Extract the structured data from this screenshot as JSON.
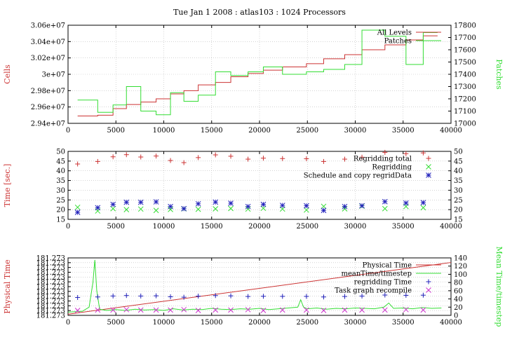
{
  "title": "Tue Jan 1 2008 : atlas103 : 1024 Processors",
  "colors": {
    "red": "#cc3333",
    "green": "#33dd33",
    "blue": "#2222bb",
    "magenta": "#cc33cc",
    "grid": "#bbbbbb"
  },
  "chart_data": [
    {
      "type": "line",
      "xlim": [
        0,
        40000
      ],
      "xticks": [
        0,
        5000,
        10000,
        15000,
        20000,
        25000,
        30000,
        35000,
        40000
      ],
      "xtick_labels": [
        "0",
        "5000",
        "10000",
        "15000",
        "20000",
        "25000",
        "30000",
        "35000",
        "40000"
      ],
      "ylabel": "Cells",
      "ylim": [
        29400000,
        30600000
      ],
      "yticks": [
        29400000,
        29600000,
        29800000,
        30000000,
        30200000,
        30400000,
        30600000
      ],
      "ytick_labels": [
        "2.94e+07",
        "2.96e+07",
        "2.98e+07",
        "3e+07",
        "3.02e+07",
        "3.04e+07",
        "3.06e+07"
      ],
      "y2label": "Patches",
      "y2lim": [
        17000,
        17800
      ],
      "y2ticks": [
        17000,
        17100,
        17200,
        17300,
        17400,
        17500,
        17600,
        17700,
        17800
      ],
      "y2tick_labels": [
        "17000",
        "17100",
        "17200",
        "17300",
        "17400",
        "17500",
        "17600",
        "17700",
        "17800"
      ],
      "grid": true,
      "legend": "top-right",
      "series": [
        {
          "name": "All Levels",
          "axis": "left",
          "style": "step",
          "color": "red",
          "x": [
            1000,
            3100,
            4700,
            6100,
            7600,
            9200,
            10700,
            12100,
            13600,
            15400,
            17000,
            18800,
            20400,
            22400,
            24900,
            26700,
            28900,
            30700,
            33100,
            35300,
            37100
          ],
          "y": [
            29490000,
            29500000,
            29580000,
            29630000,
            29660000,
            29700000,
            29760000,
            29800000,
            29870000,
            29900000,
            29970000,
            30010000,
            30050000,
            30090000,
            30130000,
            30190000,
            30240000,
            30300000,
            30360000,
            30420000,
            30470000
          ]
        },
        {
          "name": "Patches",
          "axis": "right",
          "style": "step",
          "color": "green",
          "x": [
            1000,
            3100,
            4700,
            6100,
            7600,
            9200,
            10700,
            12100,
            13600,
            15400,
            17000,
            18800,
            20400,
            22400,
            24900,
            26700,
            28900,
            30700,
            33100,
            35300,
            37100
          ],
          "y": [
            17190,
            17090,
            17150,
            17300,
            17100,
            17070,
            17250,
            17180,
            17230,
            17420,
            17390,
            17420,
            17460,
            17400,
            17420,
            17440,
            17480,
            17760,
            17710,
            17480,
            17740
          ]
        }
      ]
    },
    {
      "type": "scatter",
      "xlim": [
        0,
        40000
      ],
      "xticks": [
        0,
        5000,
        10000,
        15000,
        20000,
        25000,
        30000,
        35000,
        40000
      ],
      "xtick_labels": [
        "0",
        "5000",
        "10000",
        "15000",
        "20000",
        "25000",
        "30000",
        "35000",
        "40000"
      ],
      "ylabel": "Time [sec.]",
      "ylim": [
        15,
        50
      ],
      "yticks": [
        15,
        20,
        25,
        30,
        35,
        40,
        45,
        50
      ],
      "ytick_labels": [
        "15",
        "20",
        "25",
        "30",
        "35",
        "40",
        "45",
        "50"
      ],
      "y2ticks": [
        15,
        20,
        25,
        30,
        35,
        40,
        45,
        50
      ],
      "y2tick_labels": [
        "15",
        "20",
        "25",
        "30",
        "35",
        "40",
        "45",
        "50"
      ],
      "grid": true,
      "legend": "top-right",
      "series": [
        {
          "name": "Regridding total",
          "marker": "plus",
          "color": "red",
          "x": [
            1000,
            3100,
            4700,
            6100,
            7600,
            9200,
            10700,
            12100,
            13600,
            15400,
            17000,
            18800,
            20400,
            22400,
            24900,
            26700,
            28900,
            30700,
            33100,
            35300,
            37100
          ],
          "y": [
            43.5,
            44.8,
            47.2,
            48.3,
            47.1,
            47.6,
            45.3,
            44.2,
            46.8,
            48.2,
            47.5,
            46,
            46.5,
            46.3,
            46.2,
            44.8,
            46,
            47,
            49.5,
            48.8,
            49.2
          ]
        },
        {
          "name": "Regridding",
          "marker": "cross",
          "color": "green",
          "x": [
            1000,
            3100,
            4700,
            6100,
            7600,
            9200,
            10700,
            12100,
            13600,
            15400,
            17000,
            18800,
            20400,
            22400,
            24900,
            26700,
            28900,
            30700,
            33100,
            35300,
            37100
          ],
          "y": [
            21.2,
            19.3,
            20.5,
            20,
            20.3,
            19.6,
            20.1,
            20.4,
            20.2,
            20.4,
            20.6,
            20.3,
            20.7,
            20.3,
            19.8,
            21.7,
            20.4,
            21.8,
            20.5,
            21.6,
            21
          ]
        },
        {
          "name": "Schedule and copy regridData",
          "marker": "star",
          "color": "blue",
          "x": [
            1000,
            3100,
            4700,
            6100,
            7600,
            9200,
            10700,
            12100,
            13600,
            15400,
            17000,
            18800,
            20400,
            22400,
            24900,
            26700,
            28900,
            30700,
            33100,
            35300,
            37100
          ],
          "y": [
            18.6,
            21,
            22.7,
            23.8,
            23.8,
            24,
            21.6,
            20.5,
            23,
            23.9,
            23.3,
            21.6,
            22.7,
            22.2,
            22,
            19.6,
            21.6,
            22,
            24.1,
            23.4,
            23.6
          ]
        }
      ]
    },
    {
      "type": "line",
      "xlim": [
        0,
        40000
      ],
      "xticks": [
        0,
        5000,
        10000,
        15000,
        20000,
        25000,
        30000,
        35000,
        40000
      ],
      "xtick_labels": [
        "0",
        "5000",
        "10000",
        "15000",
        "20000",
        "25000",
        "30000",
        "35000",
        "40000"
      ],
      "ylabel": "Physical Time",
      "ylim": [
        0,
        1
      ],
      "yticks": [
        0,
        0.0833,
        0.1667,
        0.25,
        0.3333,
        0.4167,
        0.5,
        0.5833,
        0.6667,
        0.75,
        0.8333,
        0.9167,
        1
      ],
      "ytick_labels": [
        "181.273",
        "181.273",
        "181.273",
        "181.273",
        "181.273",
        "181.273",
        "181.273",
        "181.273",
        "181.273",
        "181.273",
        "181.273",
        "181.273",
        "181.273"
      ],
      "y2label": "Mean Time/timestep",
      "y2lim": [
        0,
        140
      ],
      "y2ticks": [
        0,
        20,
        40,
        60,
        80,
        100,
        120,
        140
      ],
      "y2tick_labels": [
        "0",
        "20",
        "40",
        "60",
        "80",
        "100",
        "120",
        "140"
      ],
      "grid": true,
      "legend": "top-right",
      "series": [
        {
          "name": "Physical Time",
          "axis": "left",
          "style": "line",
          "color": "red",
          "x": [
            0,
            40000
          ],
          "y": [
            0.02,
            0.92
          ]
        },
        {
          "name": "meanTime/timestep",
          "axis": "right",
          "style": "line",
          "color": "green",
          "x": [
            0,
            1500,
            2200,
            2600,
            2800,
            3000,
            3300,
            4000,
            5000,
            6000,
            7000,
            8000,
            9000,
            10000,
            11000,
            12000,
            13000,
            14000,
            15000,
            16000,
            17000,
            18000,
            19000,
            20000,
            21000,
            22000,
            23000,
            24000,
            24300,
            24600,
            25000,
            26000,
            27000,
            28000,
            29000,
            30000,
            31000,
            32000,
            33000,
            33500,
            34000,
            35000,
            36000,
            37000,
            38000,
            39000
          ],
          "y": [
            8,
            10,
            20,
            80,
            135,
            60,
            15,
            12,
            14,
            12,
            15,
            13,
            14,
            12,
            16,
            13,
            15,
            14,
            17,
            15,
            14,
            16,
            15,
            17,
            14,
            16,
            18,
            20,
            38,
            20,
            16,
            18,
            15,
            17,
            16,
            18,
            17,
            16,
            20,
            30,
            17,
            18,
            16,
            19,
            17,
            18
          ]
        },
        {
          "name": "regridding Time",
          "axis": "right",
          "marker": "plus",
          "color": "blue",
          "x": [
            1000,
            3100,
            4700,
            6100,
            7600,
            9200,
            10700,
            12100,
            13600,
            15400,
            17000,
            18800,
            20400,
            22400,
            24900,
            26700,
            28900,
            30700,
            33100,
            35300,
            37100
          ],
          "y": [
            43.5,
            44.8,
            47.2,
            48.3,
            47.1,
            47.6,
            45.3,
            44.2,
            46.8,
            48.2,
            47.5,
            46,
            46.5,
            46.3,
            46.2,
            44.8,
            46,
            47,
            49.5,
            48.8,
            49.2
          ]
        },
        {
          "name": "Task graph recompile",
          "axis": "right",
          "marker": "cross",
          "color": "magenta",
          "x": [
            1000,
            3100,
            4700,
            6100,
            7600,
            9200,
            10700,
            12100,
            13600,
            15400,
            17000,
            18800,
            20400,
            22400,
            24900,
            26700,
            28900,
            30700,
            33100,
            35300,
            37100
          ],
          "y": [
            12,
            13,
            13,
            14,
            13,
            13,
            13,
            14,
            12,
            13,
            13,
            14,
            12,
            13,
            13,
            12,
            13,
            13,
            13,
            14,
            13
          ]
        }
      ]
    }
  ]
}
